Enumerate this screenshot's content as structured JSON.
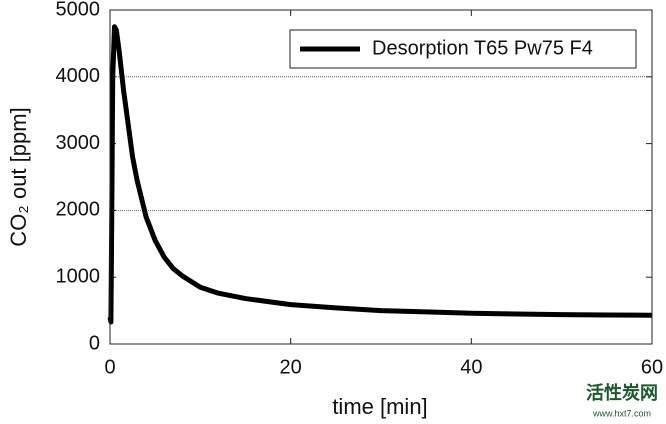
{
  "chart_data": {
    "type": "line",
    "xlabel": "time [min]",
    "ylabel": "CO₂ out [ppm]",
    "x": [
      0,
      0.1,
      0.2,
      0.3,
      0.5,
      0.7,
      1,
      1.5,
      2,
      2.5,
      3,
      4,
      5,
      6,
      7,
      8,
      10,
      12,
      15,
      20,
      25,
      30,
      35,
      40,
      45,
      50,
      55,
      60
    ],
    "series": [
      {
        "name": "Desorption T65 Pw75 F4",
        "color": "#000000",
        "values": [
          400,
          330,
          2000,
          4000,
          4750,
          4700,
          4400,
          3800,
          3300,
          2800,
          2450,
          1900,
          1550,
          1300,
          1130,
          1020,
          850,
          760,
          680,
          590,
          540,
          500,
          480,
          460,
          450,
          440,
          435,
          430
        ]
      }
    ],
    "xlim": [
      0,
      60
    ],
    "xticks": [
      0,
      20,
      40,
      60
    ],
    "ylim": [
      0,
      5000
    ],
    "yticks": [
      0,
      1000,
      2000,
      3000,
      4000,
      5000
    ],
    "ygrid": [
      2000,
      4000
    ],
    "legend": "upper right"
  },
  "watermark": {
    "title": "活性炭网",
    "url": "www.hxt7.com"
  }
}
